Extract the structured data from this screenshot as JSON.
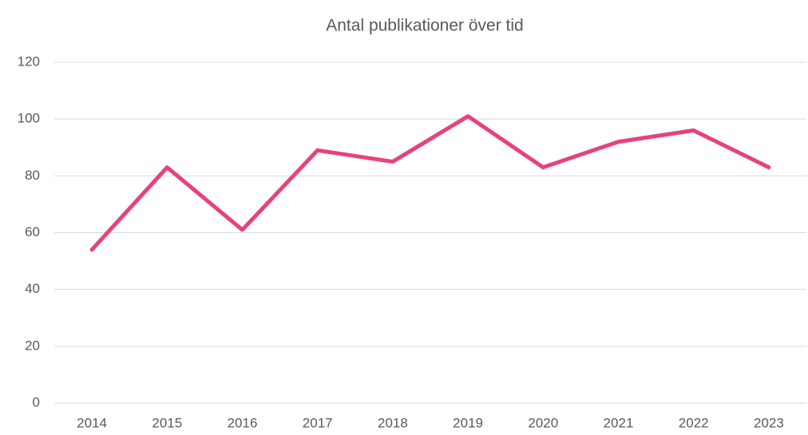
{
  "chart_data": {
    "type": "line",
    "title": "Antal publikationer över tid",
    "categories": [
      "2014",
      "2015",
      "2016",
      "2017",
      "2018",
      "2019",
      "2020",
      "2021",
      "2022",
      "2023"
    ],
    "values": [
      54,
      83,
      61,
      89,
      85,
      101,
      83,
      92,
      96,
      83
    ],
    "color": "#e8417f",
    "ylim": [
      0,
      120
    ],
    "yticks": [
      0,
      20,
      40,
      60,
      80,
      100,
      120
    ],
    "grid": true
  }
}
